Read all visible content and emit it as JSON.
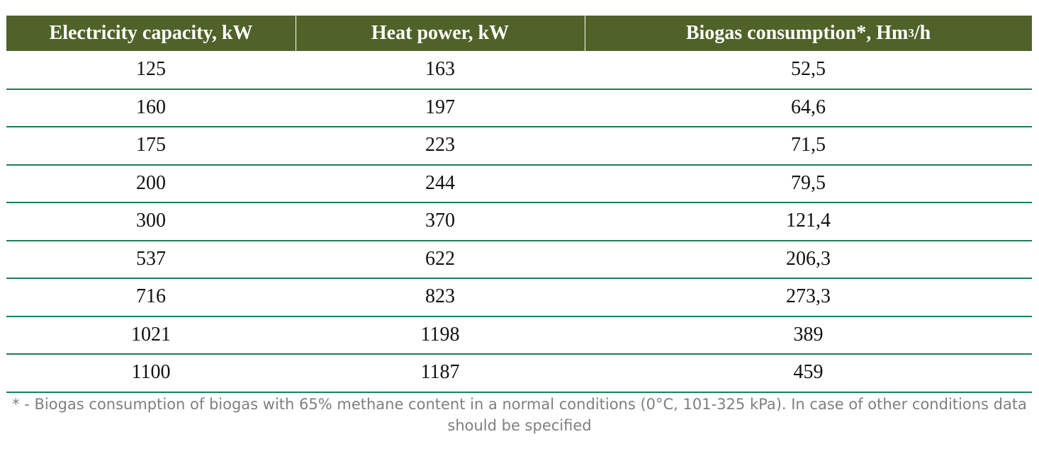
{
  "table": {
    "headers": [
      {
        "text": "Electricity capacity, kW"
      },
      {
        "text": "Heat power, kW"
      },
      {
        "text": "Biogas consumption*, Hm",
        "sup": "3",
        "after": "/h"
      }
    ],
    "rows": [
      [
        "125",
        "163",
        "52,5"
      ],
      [
        "160",
        "197",
        "64,6"
      ],
      [
        "175",
        "223",
        "71,5"
      ],
      [
        "200",
        "244",
        "79,5"
      ],
      [
        "300",
        "370",
        "121,4"
      ],
      [
        "537",
        "622",
        "206,3"
      ],
      [
        "716",
        "823",
        "273,3"
      ],
      [
        "1021",
        "1198",
        "389"
      ],
      [
        "1100",
        "1187",
        "459"
      ]
    ]
  },
  "footnote": "* - Biogas consumption of biogas with 65% methane content in a normal conditions  (0°C, 101-325 kPa). In case of other conditions data should be specified"
}
